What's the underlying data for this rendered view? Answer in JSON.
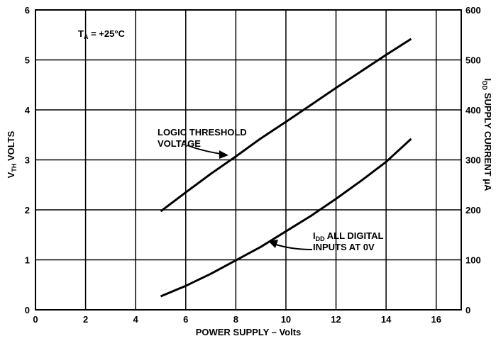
{
  "chart_data": {
    "type": "line",
    "title": "",
    "xlabel": "POWER SUPPLY – Volts",
    "ylabel_left": {
      "main": "V",
      "sub": "TH",
      "rest": " VOLTS"
    },
    "ylabel_right": {
      "main": "I",
      "sub": "DD",
      "rest": " SUPPLY CURRENT μA"
    },
    "xlim": [
      0,
      17
    ],
    "ylim_left": [
      0,
      6
    ],
    "ylim_right": [
      0,
      600
    ],
    "x_ticks": [
      "0",
      "2",
      "4",
      "6",
      "8",
      "10",
      "12",
      "14",
      "16"
    ],
    "y_left_ticks": [
      "0",
      "1",
      "2",
      "3",
      "4",
      "5",
      "6"
    ],
    "y_right_ticks": [
      "0",
      "100",
      "200",
      "300",
      "400",
      "500",
      "600"
    ],
    "grid": true,
    "annotation_temp": {
      "main": "T",
      "sub": "A",
      "rest": " = +25°C"
    },
    "series": [
      {
        "name": "LOGIC THRESHOLD VOLTAGE",
        "axis": "left",
        "x": [
          5.0,
          6.0,
          7.0,
          8.0,
          9.0,
          10.0,
          11.0,
          12.0,
          13.0,
          14.0,
          15.0
        ],
        "y": [
          1.97,
          2.35,
          2.72,
          3.07,
          3.43,
          3.76,
          4.1,
          4.44,
          4.77,
          5.1,
          5.42
        ]
      },
      {
        "name": "IDD ALL DIGITAL INPUTS AT 0V",
        "axis": "right",
        "x": [
          5.0,
          6.0,
          7.0,
          8.0,
          9.0,
          10.0,
          11.0,
          12.0,
          13.0,
          14.0,
          15.0
        ],
        "y": [
          27,
          48,
          72,
          99,
          126,
          157,
          188,
          222,
          258,
          296,
          342
        ]
      }
    ],
    "labels": {
      "threshold": [
        "LOGIC THRESHOLD",
        "VOLTAGE"
      ],
      "idd_line1": {
        "main": "I",
        "sub": "DD",
        "rest": " ALL DIGITAL"
      },
      "idd_line2": "INPUTS AT 0V"
    }
  }
}
